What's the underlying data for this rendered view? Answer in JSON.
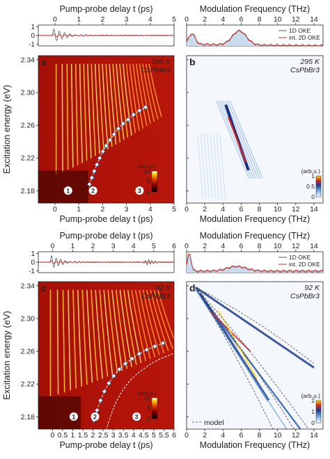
{
  "figure": {
    "ylabel": "Excitation energy (eV)",
    "model_label": "model"
  },
  "chart_data": [
    {
      "id": "a",
      "type": "heatmap",
      "panel_letter": "a",
      "temperature": "295 K",
      "material": "CsPbBr3",
      "xlabel": "Pump-probe delay t (ps)",
      "xlim": [
        -0.7,
        5
      ],
      "xticks": [
        0,
        1,
        2,
        3,
        4,
        5
      ],
      "ylim": [
        2.165,
        2.345
      ],
      "yticks": [
        2.18,
        2.22,
        2.26,
        2.3,
        2.34
      ],
      "colorbar_label": "(arb.u.)",
      "colorbar_ticks": [
        0,
        5,
        10
      ],
      "markers": [
        {
          "label": "1",
          "x": 0.55
        },
        {
          "label": "2",
          "x": 1.6
        },
        {
          "label": "3",
          "x": 3.55
        }
      ],
      "diamonds": [
        [
          1.45,
          2.188
        ],
        [
          1.55,
          2.196
        ],
        [
          1.65,
          2.204
        ],
        [
          1.76,
          2.212
        ],
        [
          1.88,
          2.22
        ],
        [
          2.01,
          2.228
        ],
        [
          2.15,
          2.235
        ],
        [
          2.31,
          2.242
        ],
        [
          2.48,
          2.249
        ],
        [
          2.66,
          2.256
        ],
        [
          2.86,
          2.262
        ],
        [
          3.07,
          2.267
        ],
        [
          3.3,
          2.273
        ],
        [
          3.55,
          2.278
        ],
        [
          3.8,
          2.282
        ]
      ],
      "inset": {
        "xlabel": "Pump-probe delay t (ps)",
        "xlim": [
          -0.7,
          5
        ],
        "xticks": [
          0,
          1,
          2,
          3,
          4,
          5
        ],
        "ylim": [
          -1.2,
          1.2
        ],
        "yticks": [
          -1,
          0,
          1
        ]
      }
    },
    {
      "id": "b",
      "type": "heatmap",
      "panel_letter": "b",
      "temperature": "295 K",
      "material": "CsPbBr3",
      "xlabel": "Modulation Frequency (THz)",
      "xlim": [
        0,
        15
      ],
      "xticks": [
        0,
        2,
        4,
        6,
        8,
        10,
        12,
        14
      ],
      "ylim": [
        2.165,
        2.345
      ],
      "colorbar_label": "(arb.u.)",
      "colorbar_ticks": [
        0,
        0.5,
        1
      ],
      "legend": [
        "1D OKE",
        "int. 2D OKE"
      ],
      "inset": {
        "xlabel": "Modulation Frequency (THz)",
        "xlim": [
          0,
          15
        ],
        "xticks": [
          0,
          2,
          4,
          6,
          8,
          10,
          12,
          14
        ]
      }
    },
    {
      "id": "c",
      "type": "heatmap",
      "panel_letter": "c",
      "temperature": "92 K",
      "material": "CsPbBr3",
      "xlabel": "Pump-probe delay t (ps)",
      "xlim": [
        -0.7,
        6
      ],
      "xticks": [
        0,
        0.5,
        1,
        1.5,
        2,
        2.5,
        3,
        3.5,
        4,
        4.5,
        5,
        5.5,
        6
      ],
      "xtick_labels": [
        "0",
        "0.5",
        "1",
        "1.5",
        "2",
        "2.5",
        "3",
        "3.5",
        "4",
        "4.5",
        "5",
        "5.5",
        "6"
      ],
      "ylim": [
        2.165,
        2.345
      ],
      "yticks": [
        2.18,
        2.22,
        2.26,
        2.3,
        2.34
      ],
      "colorbar_label": "(arb.u.)",
      "colorbar_ticks": [
        0,
        5,
        10
      ],
      "markers": [
        {
          "label": "1",
          "x": 1.05
        },
        {
          "label": "2",
          "x": 2.1
        },
        {
          "label": "3",
          "x": 4.15
        }
      ],
      "diamonds": [
        [
          2.05,
          2.176
        ],
        [
          2.2,
          2.188
        ],
        [
          2.37,
          2.2
        ],
        [
          2.56,
          2.211
        ],
        [
          2.78,
          2.221
        ],
        [
          3.02,
          2.23
        ],
        [
          3.3,
          2.238
        ],
        [
          3.6,
          2.245
        ],
        [
          3.93,
          2.251
        ],
        [
          4.28,
          2.257
        ],
        [
          4.65,
          2.262
        ],
        [
          5.05,
          2.266
        ],
        [
          5.45,
          2.27
        ]
      ],
      "inset": {
        "xlabel": "Pump-probe delay t (ps)",
        "xlim": [
          -0.7,
          6
        ],
        "xticks": [
          0,
          1,
          2,
          3,
          4,
          5,
          6
        ],
        "ylim": [
          -1.2,
          1.2
        ],
        "yticks": [
          -1,
          0,
          1
        ]
      }
    },
    {
      "id": "d",
      "type": "heatmap",
      "panel_letter": "d",
      "temperature": "92 K",
      "material": "CsPbBr3",
      "xlabel": "Modulation Frequency (THz)",
      "xlim": [
        0,
        15
      ],
      "xticks": [
        0,
        2,
        4,
        6,
        8,
        10,
        12,
        14
      ],
      "ylim": [
        2.165,
        2.345
      ],
      "colorbar_label": "(arb.u.)",
      "colorbar_ticks": [
        0,
        1,
        2
      ],
      "legend": [
        "1D OKE",
        "int. 2D OKE"
      ],
      "inset": {
        "xlabel": "Modulation Frequency (THz)",
        "xlim": [
          0,
          15
        ],
        "xticks": [
          0,
          2,
          4,
          6,
          8,
          10,
          12,
          14
        ]
      }
    }
  ]
}
